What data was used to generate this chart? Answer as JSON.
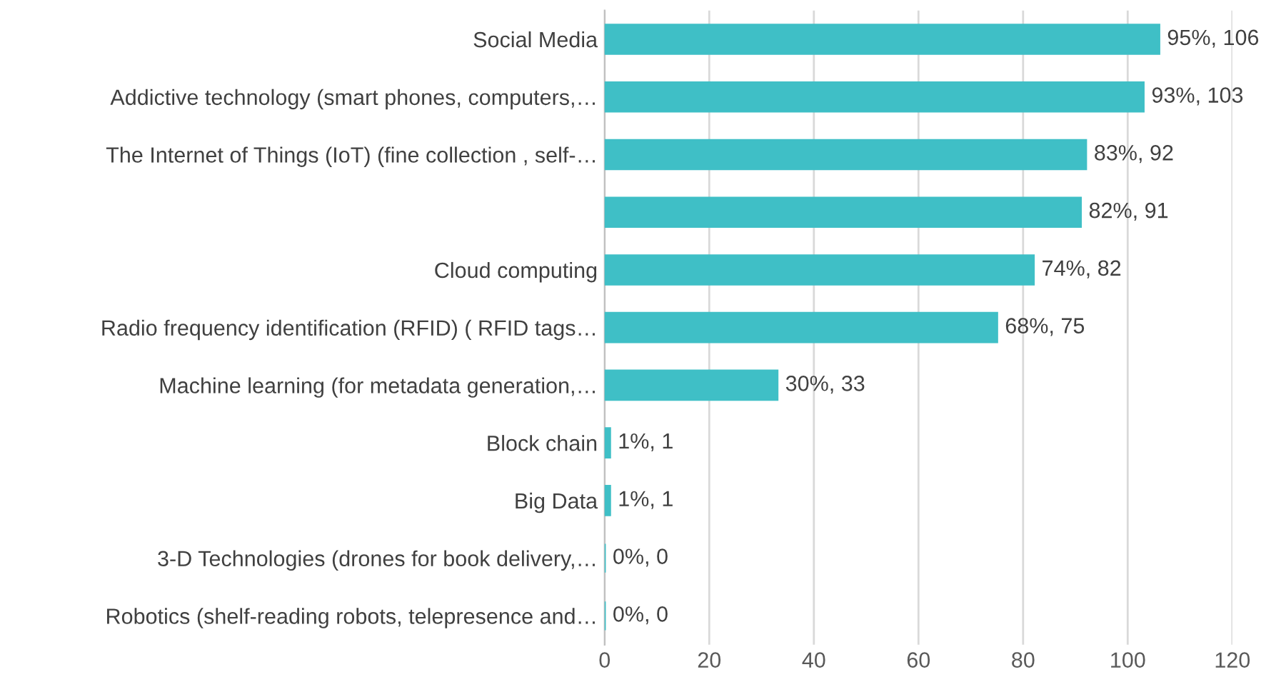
{
  "chart_data": {
    "type": "bar",
    "orientation": "horizontal",
    "categories": [
      "Social Media",
      "Addictive technology (smart phones, computers,…",
      "The Internet of Things (IoT) (fine collection , self-…",
      null,
      "Cloud computing",
      "Radio frequency identification (RFID) ( RFID tags…",
      "Machine learning (for metadata generation,…",
      "Block chain",
      "Big Data",
      "3-D Technologies (drones for book delivery,…",
      "Robotics (shelf-reading robots, telepresence and…"
    ],
    "values": [
      106,
      103,
      92,
      91,
      82,
      75,
      33,
      1,
      1,
      0,
      0
    ],
    "value_labels": [
      "95%, 106",
      "93%, 103",
      "83%, 92",
      "82%, 91",
      "74%, 82",
      "68%, 75",
      "30%, 33",
      "1%, 1",
      "1%, 1",
      "0%, 0",
      "0%, 0"
    ],
    "color": "#3fbfc6",
    "xlim": [
      0,
      120
    ],
    "xticks": [
      0,
      20,
      40,
      60,
      80,
      100,
      120
    ],
    "grid": "x",
    "legend": false
  }
}
